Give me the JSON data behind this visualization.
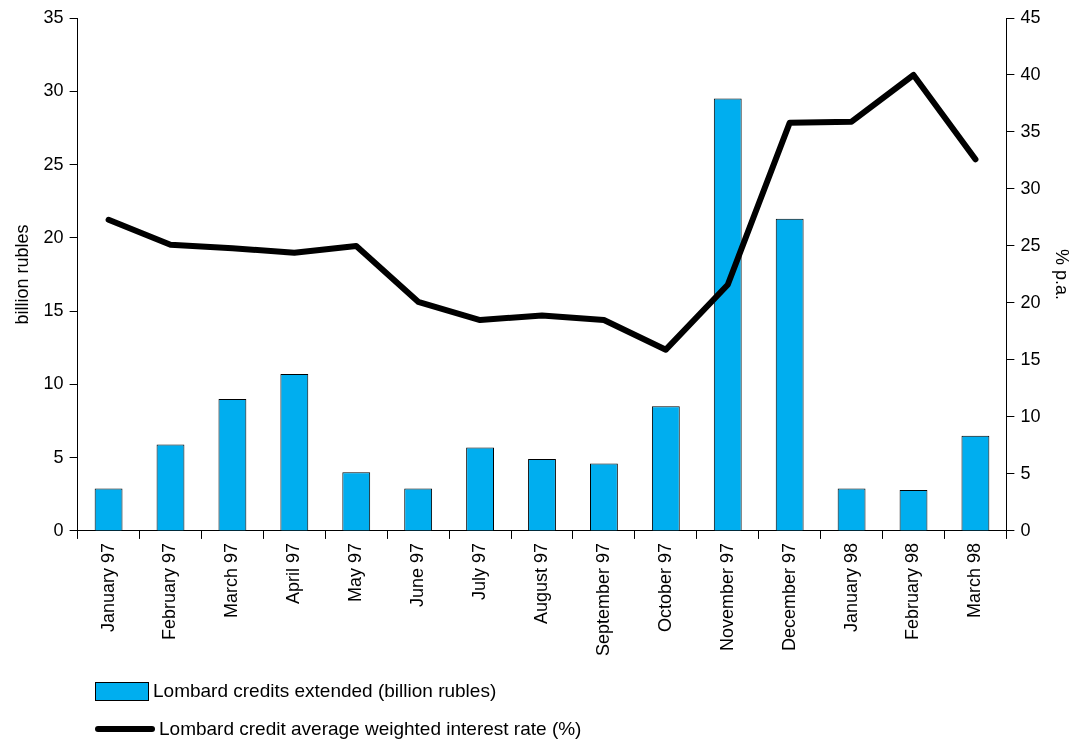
{
  "chart_data": {
    "type": "bar",
    "categories": [
      "January 97",
      "February 97",
      "March 97",
      "April 97",
      "May 97",
      "June 97",
      "July 97",
      "August 97",
      "September 97",
      "October 97",
      "November 97",
      "December 97",
      "January 98",
      "February 98",
      "March 98"
    ],
    "ylabel": "billion rubles",
    "y2label": "% p.a.",
    "ylim": [
      0,
      35
    ],
    "yticks": [
      0,
      5,
      10,
      15,
      20,
      25,
      30,
      35
    ],
    "y2lim": [
      0,
      45
    ],
    "y2ticks": [
      0,
      5,
      10,
      15,
      20,
      25,
      30,
      35,
      40,
      45
    ],
    "legend": "bottom left",
    "grid": false,
    "series": [
      {
        "name": "Lombard credits extended (billion rubles)",
        "color": "#00aeef",
        "values": [
          2.9,
          5.9,
          9.0,
          10.7,
          4.0,
          2.9,
          5.7,
          4.9,
          4.6,
          8.5,
          29.5,
          21.3,
          2.9,
          2.8,
          6.5
        ]
      },
      {
        "name": "Lombard credit average weighted interest rate (%)",
        "type": "line",
        "axis": "y2",
        "color": "#000000",
        "marker": "none",
        "values": [
          27.3,
          25.1,
          24.8,
          24.4,
          25.0,
          20.1,
          18.5,
          18.9,
          18.5,
          15.9,
          21.6,
          35.8,
          35.9,
          40.0,
          32.6
        ]
      }
    ]
  }
}
